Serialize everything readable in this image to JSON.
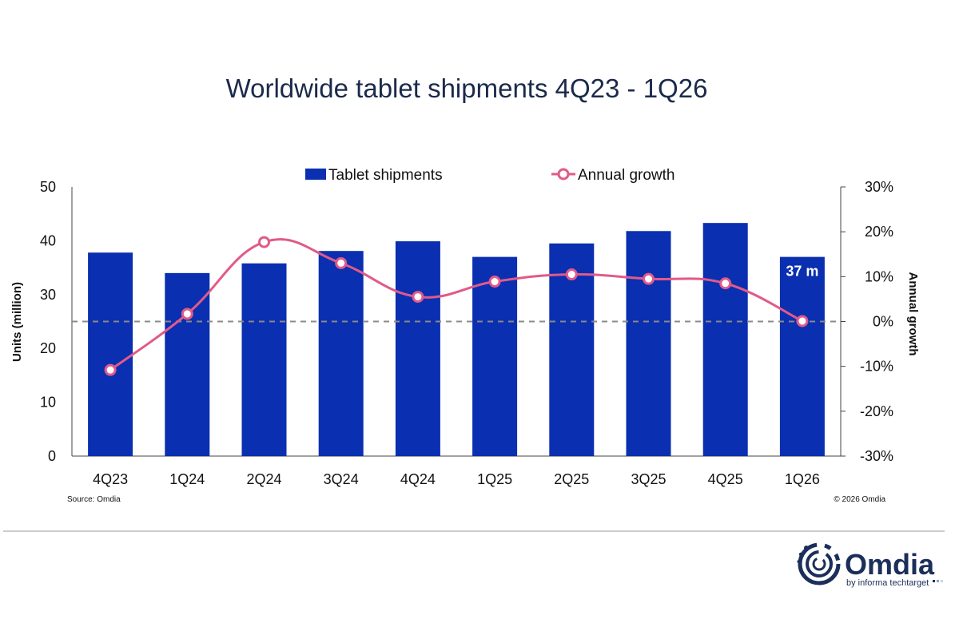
{
  "chart_data": {
    "type": "bar",
    "title": "Worldwide tablet shipments 4Q23 - 1Q26",
    "categories": [
      "4Q23",
      "1Q24",
      "2Q24",
      "3Q24",
      "4Q24",
      "1Q25",
      "2Q25",
      "3Q25",
      "4Q25",
      "1Q26"
    ],
    "series": [
      {
        "name": "Tablet shipments",
        "type": "bar",
        "axis": "left",
        "color": "#0a2fb0",
        "values": [
          37.8,
          34.0,
          35.8,
          38.1,
          39.9,
          37.0,
          39.5,
          41.8,
          43.3,
          37.0
        ]
      },
      {
        "name": "Annual growth",
        "type": "line",
        "axis": "right",
        "color": "#e05a8a",
        "unit": "%",
        "values": [
          -10.8,
          1.7,
          17.7,
          13.0,
          5.5,
          8.9,
          10.5,
          9.5,
          8.5,
          0.1
        ]
      }
    ],
    "ylabel": "Units (million)",
    "y2label": "Annual growth",
    "ylim": [
      0,
      50
    ],
    "yticks": [
      "0",
      "10",
      "20",
      "30",
      "40",
      "50"
    ],
    "y2lim": [
      -30,
      30
    ],
    "y2ticks": [
      "-30%",
      "-20%",
      "-10%",
      "0%",
      "10%",
      "20%",
      "30%"
    ],
    "reference_line": {
      "axis": "right",
      "value": 0,
      "style": "dashed"
    },
    "data_labels": [
      {
        "category": "1Q26",
        "series": "Tablet shipments",
        "text": "37 m"
      }
    ],
    "legend_position": "top-center",
    "grid": false,
    "source": "Source: Omdia",
    "copyright": "© 2026 Omdia"
  },
  "logo": {
    "name": "Omdia",
    "tagline": "by informa techtarget",
    "color": "#1b2f5a"
  }
}
